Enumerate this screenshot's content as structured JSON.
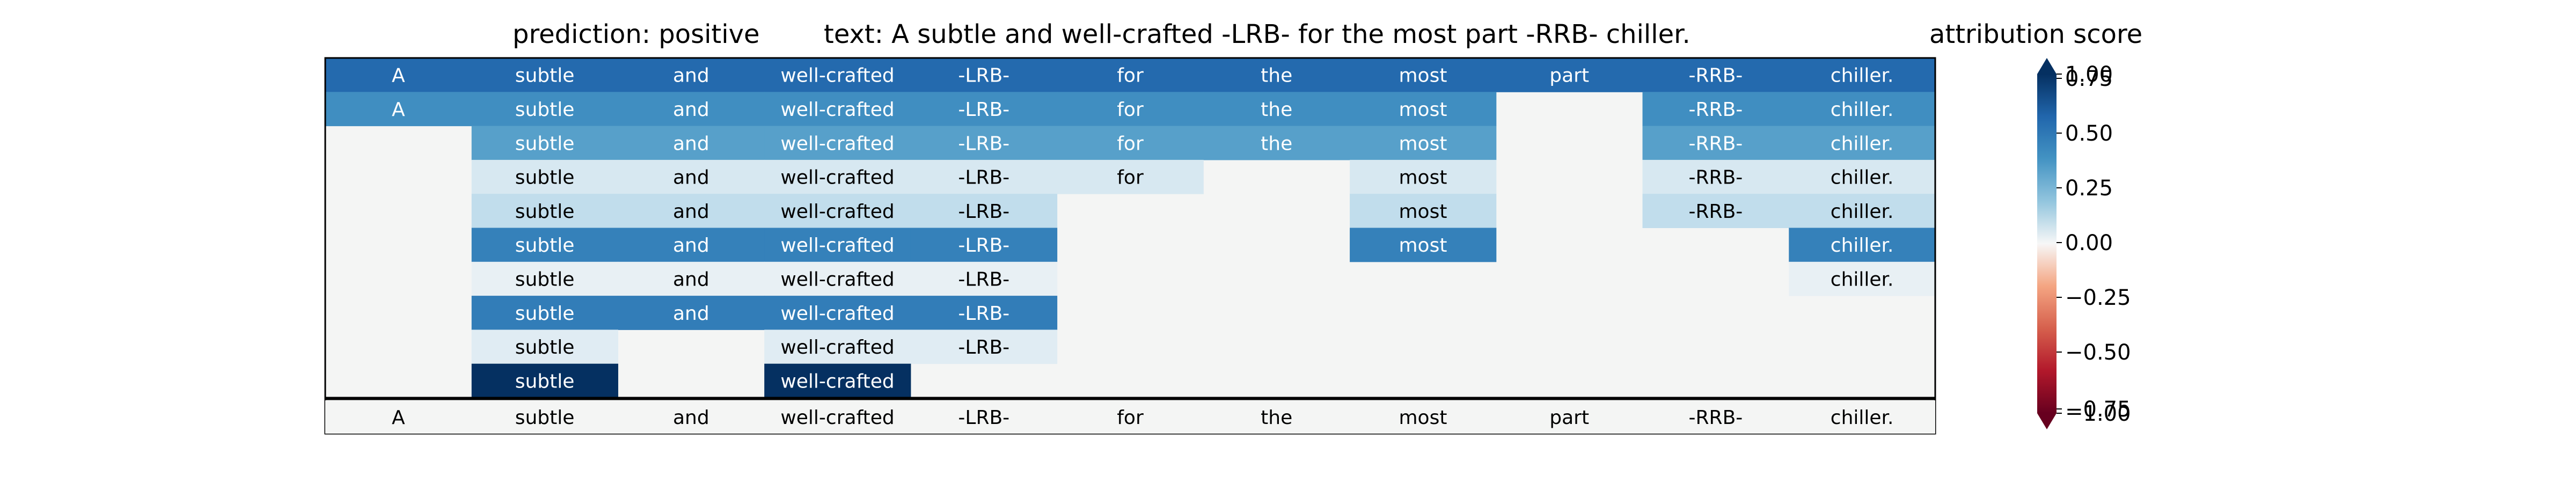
{
  "chart_data": {
    "type": "heatmap",
    "title_prediction": "prediction:  positive",
    "title_text": "text:  A subtle and well-crafted -LRB- for the most part -RRB- chiller.",
    "colorbar_title": "attribution score",
    "tokens": [
      "A",
      "subtle",
      "and",
      "well-crafted",
      "-LRB-",
      "for",
      "the",
      "most",
      "part",
      "-RRB-",
      "chiller."
    ],
    "rows": [
      [
        0.78,
        0.78,
        0.78,
        0.78,
        0.78,
        0.78,
        0.78,
        0.78,
        0.78,
        0.78,
        0.78
      ],
      [
        0.62,
        0.62,
        0.62,
        0.62,
        0.62,
        0.62,
        0.62,
        0.62,
        null,
        0.62,
        0.62
      ],
      [
        null,
        0.55,
        0.55,
        0.55,
        0.55,
        0.55,
        0.55,
        0.55,
        null,
        0.55,
        0.55
      ],
      [
        null,
        0.17,
        0.17,
        0.17,
        0.17,
        0.17,
        null,
        0.17,
        null,
        0.17,
        0.17
      ],
      [
        null,
        0.25,
        0.25,
        0.25,
        0.25,
        null,
        null,
        0.25,
        null,
        0.25,
        0.25
      ],
      [
        null,
        0.68,
        0.68,
        0.68,
        0.68,
        null,
        null,
        0.68,
        null,
        null,
        0.68
      ],
      [
        null,
        0.08,
        0.08,
        0.08,
        0.08,
        null,
        null,
        null,
        null,
        null,
        0.08
      ],
      [
        null,
        0.7,
        0.7,
        0.7,
        0.7,
        null,
        null,
        null,
        null,
        null,
        null
      ],
      [
        null,
        0.12,
        null,
        0.12,
        0.12,
        null,
        null,
        null,
        null,
        null,
        null
      ],
      [
        null,
        1.0,
        null,
        1.0,
        null,
        null,
        null,
        null,
        null,
        null,
        null
      ]
    ],
    "colormap": "RdBu",
    "vmin": -1.0,
    "vmax": 1.0,
    "colorbar_ticks": [
      "1.00",
      "0.75",
      "0.50",
      "0.25",
      "0.00",
      "−0.25",
      "−0.50",
      "−0.75",
      "−1.00"
    ]
  }
}
